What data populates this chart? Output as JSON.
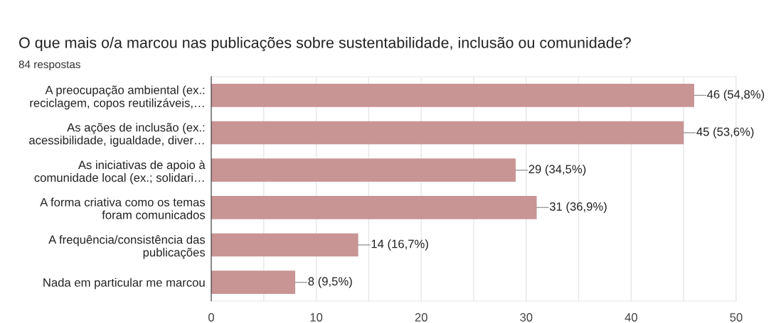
{
  "chart_data": {
    "type": "bar",
    "orientation": "horizontal",
    "title": "O que mais o/a marcou nas publicações sobre sustentabilidade, inclusão ou comunidade?",
    "subtitle": "84 respostas",
    "categories": [
      "A preocupação ambiental (ex.:\nreciclagem, copos reutilizáveis,…",
      "As ações de inclusão (ex.:\nacessibilidade, igualdade, diver…",
      "As iniciativas de apoio à\ncomunidade local (ex.; solidari…",
      "A forma criativa como os temas\nforam comunicados",
      "A frequência/consistência das\npublicações",
      "Nada em particular me marcou"
    ],
    "values": [
      46,
      45,
      29,
      31,
      14,
      8
    ],
    "value_labels": [
      "46 (54,8%)",
      "45 (53,6%)",
      "29 (34,5%)",
      "31 (36,9%)",
      "14 (16,7%)",
      "8 (9,5%)"
    ],
    "color": "#c89594",
    "xlim": [
      0,
      50
    ],
    "xticks": [
      0,
      {
        "value": 5,
        "label": null
      },
      10,
      {
        "value": 15,
        "label": null
      },
      20,
      {
        "value": 25,
        "label": null
      },
      30,
      {
        "value": 35,
        "label": null
      },
      40,
      {
        "value": 45,
        "label": null
      },
      50
    ],
    "grid": "x"
  }
}
